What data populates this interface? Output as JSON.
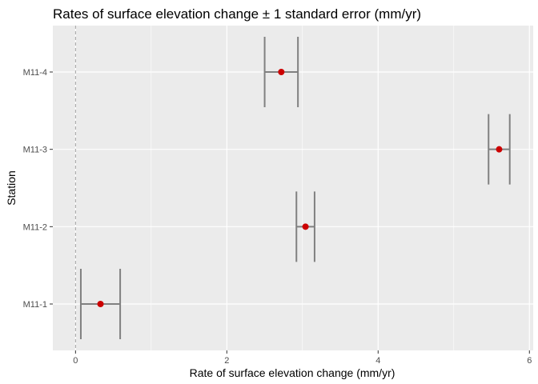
{
  "chart_data": {
    "type": "scatter",
    "title": "Rates of surface elevation change ± 1 standard error (mm/yr)",
    "xlabel": "Rate of surface elevation change (mm/yr)",
    "ylabel": "Station",
    "categories": [
      "M11-1",
      "M11-2",
      "M11-3",
      "M11-4"
    ],
    "points": [
      {
        "station": "M11-1",
        "rate": 0.33,
        "se": 0.26
      },
      {
        "station": "M11-2",
        "rate": 3.04,
        "se": 0.12
      },
      {
        "station": "M11-3",
        "rate": 5.6,
        "se": 0.14
      },
      {
        "station": "M11-4",
        "rate": 2.72,
        "se": 0.22
      }
    ],
    "reference_line": {
      "x": 0,
      "style": "dashed"
    },
    "xlim": [
      -0.3,
      6.05
    ],
    "xticks": [
      0,
      2,
      4,
      6
    ],
    "grid": true,
    "colors": {
      "panel_bg": "#ebebeb",
      "grid_major": "#ffffff",
      "errorbar": "#808080",
      "point": "#cc0000",
      "reference": "#a0a0a0"
    }
  }
}
